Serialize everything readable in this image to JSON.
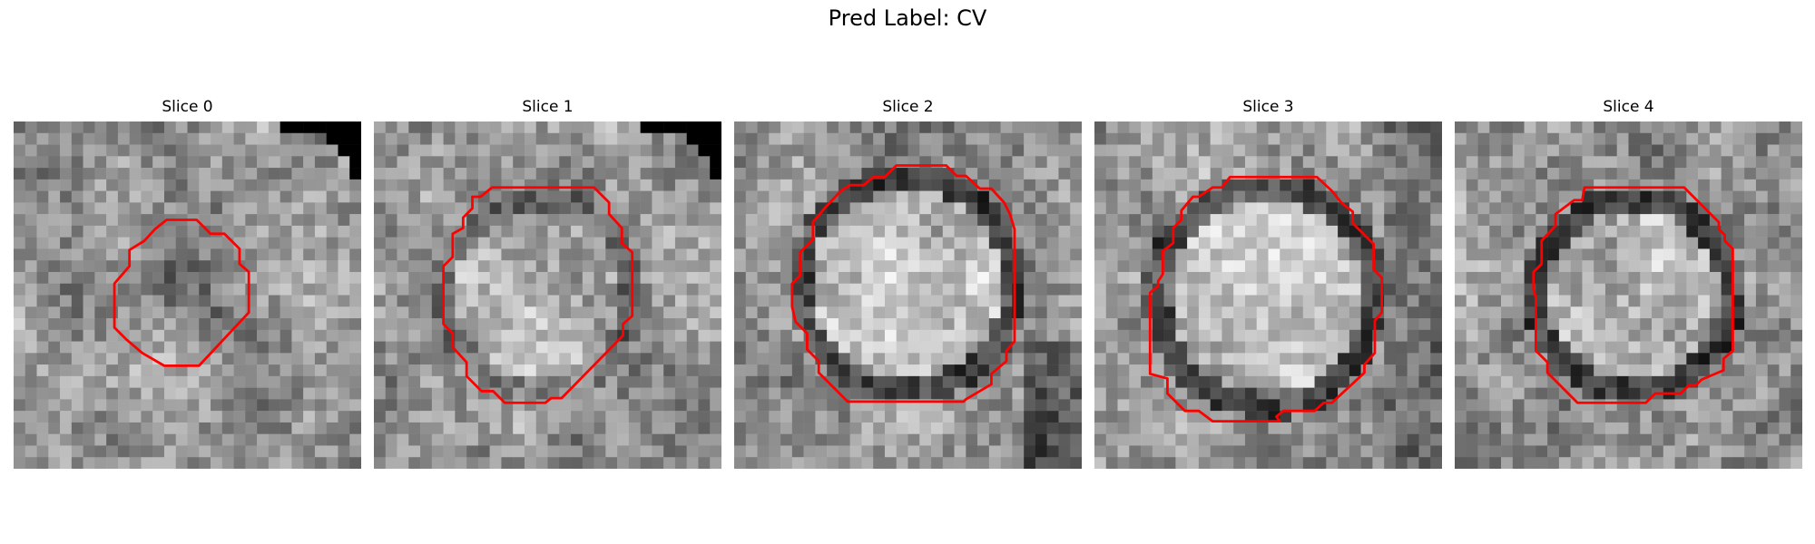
{
  "figure": {
    "title": "Pred Label: CV",
    "contour_color": "#ff0000"
  },
  "panels": [
    {
      "title": "Slice 0",
      "seed": 11,
      "blob": "dark-small"
    },
    {
      "title": "Slice 1",
      "seed": 23,
      "blob": "light-large"
    },
    {
      "title": "Slice 2",
      "seed": 37,
      "blob": "light-large-ring"
    },
    {
      "title": "Slice 3",
      "seed": 51,
      "blob": "light-large-ring"
    },
    {
      "title": "Slice 4",
      "seed": 67,
      "blob": "light-medium-ring"
    }
  ]
}
